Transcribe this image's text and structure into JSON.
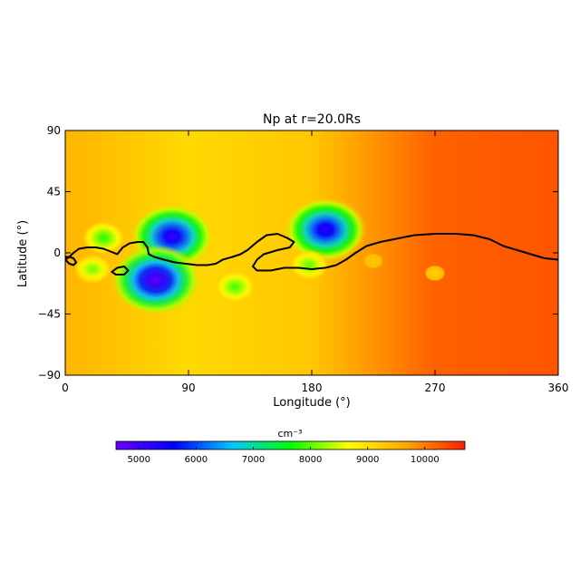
{
  "chart_data": {
    "type": "heatmap",
    "title": "Np at r=20.0Rs",
    "xlabel": "Longitude (°)",
    "ylabel": "Latitude (°)",
    "xlim": [
      0,
      360
    ],
    "ylim": [
      -90,
      90
    ],
    "xticks": [
      0,
      90,
      180,
      270,
      360
    ],
    "yticks": [
      90,
      45,
      0,
      -45,
      -90
    ],
    "colorbar": {
      "unit": "cm⁻³",
      "range": [
        4600,
        10700
      ],
      "ticks": [
        5000,
        6000,
        7000,
        8000,
        9000,
        10000
      ],
      "colors": [
        "#6a00ff",
        "#0000ff",
        "#00c8ff",
        "#00ff00",
        "#ffff00",
        "#ffa500",
        "#ff2000"
      ]
    },
    "background_gradient": [
      {
        "lon": 0,
        "value": 9500
      },
      {
        "lon": 90,
        "value": 9100
      },
      {
        "lon": 180,
        "value": 9300
      },
      {
        "lon": 270,
        "value": 10200
      },
      {
        "lon": 360,
        "value": 10300
      }
    ],
    "blobs": [
      {
        "lon": 78,
        "lat": 12,
        "value": 5100
      },
      {
        "lon": 190,
        "lat": 17,
        "value": 5200
      },
      {
        "lon": 66,
        "lat": -20,
        "value": 4700
      },
      {
        "lon": 28,
        "lat": 11,
        "value": 7800
      },
      {
        "lon": 20,
        "lat": -12,
        "value": 8100
      },
      {
        "lon": 124,
        "lat": -25,
        "value": 7900
      },
      {
        "lon": 178,
        "lat": -9,
        "value": 8000
      },
      {
        "lon": 270,
        "lat": -15,
        "value": 9200
      },
      {
        "lon": 225,
        "lat": -6,
        "value": 9300
      }
    ],
    "neutral_line": [
      [
        0,
        -5
      ],
      [
        3,
        -3
      ],
      [
        6,
        0
      ],
      [
        10,
        3
      ],
      [
        16,
        4
      ],
      [
        22,
        4
      ],
      [
        28,
        3
      ],
      [
        33,
        1
      ],
      [
        38,
        -1
      ],
      [
        42,
        4
      ],
      [
        47,
        7
      ],
      [
        53,
        8
      ],
      [
        57,
        8
      ],
      [
        60,
        4
      ],
      [
        61,
        -1
      ],
      [
        65,
        -3
      ],
      [
        72,
        -5
      ],
      [
        80,
        -7
      ],
      [
        88,
        -8
      ],
      [
        96,
        -9
      ],
      [
        104,
        -9
      ],
      [
        110,
        -8
      ],
      [
        115,
        -5
      ],
      [
        122,
        -3
      ],
      [
        128,
        -1
      ],
      [
        133,
        2
      ],
      [
        140,
        8
      ],
      [
        147,
        13
      ],
      [
        155,
        14
      ],
      [
        162,
        11
      ],
      [
        167,
        8
      ],
      [
        164,
        4
      ],
      [
        155,
        2
      ],
      [
        145,
        -1
      ],
      [
        140,
        -5
      ],
      [
        137,
        -10
      ],
      [
        140,
        -13
      ],
      [
        150,
        -13
      ],
      [
        160,
        -11
      ],
      [
        170,
        -11
      ],
      [
        180,
        -12
      ],
      [
        190,
        -11
      ],
      [
        198,
        -9
      ],
      [
        205,
        -5
      ],
      [
        212,
        0
      ],
      [
        220,
        5
      ],
      [
        230,
        8
      ],
      [
        240,
        10
      ],
      [
        255,
        13
      ],
      [
        270,
        14
      ],
      [
        285,
        14
      ],
      [
        298,
        13
      ],
      [
        310,
        10
      ],
      [
        320,
        5
      ],
      [
        330,
        2
      ],
      [
        340,
        -1
      ],
      [
        350,
        -4
      ],
      [
        360,
        -5
      ]
    ],
    "neutral_islands": [
      [
        [
          0,
          -5
        ],
        [
          3,
          -8
        ],
        [
          6,
          -9
        ],
        [
          8,
          -7
        ],
        [
          6,
          -4
        ],
        [
          3,
          -3
        ],
        [
          0,
          -3
        ]
      ],
      [
        [
          34,
          -14
        ],
        [
          38,
          -11
        ],
        [
          43,
          -10
        ],
        [
          46,
          -13
        ],
        [
          43,
          -16
        ],
        [
          37,
          -16
        ],
        [
          34,
          -14
        ]
      ]
    ]
  }
}
